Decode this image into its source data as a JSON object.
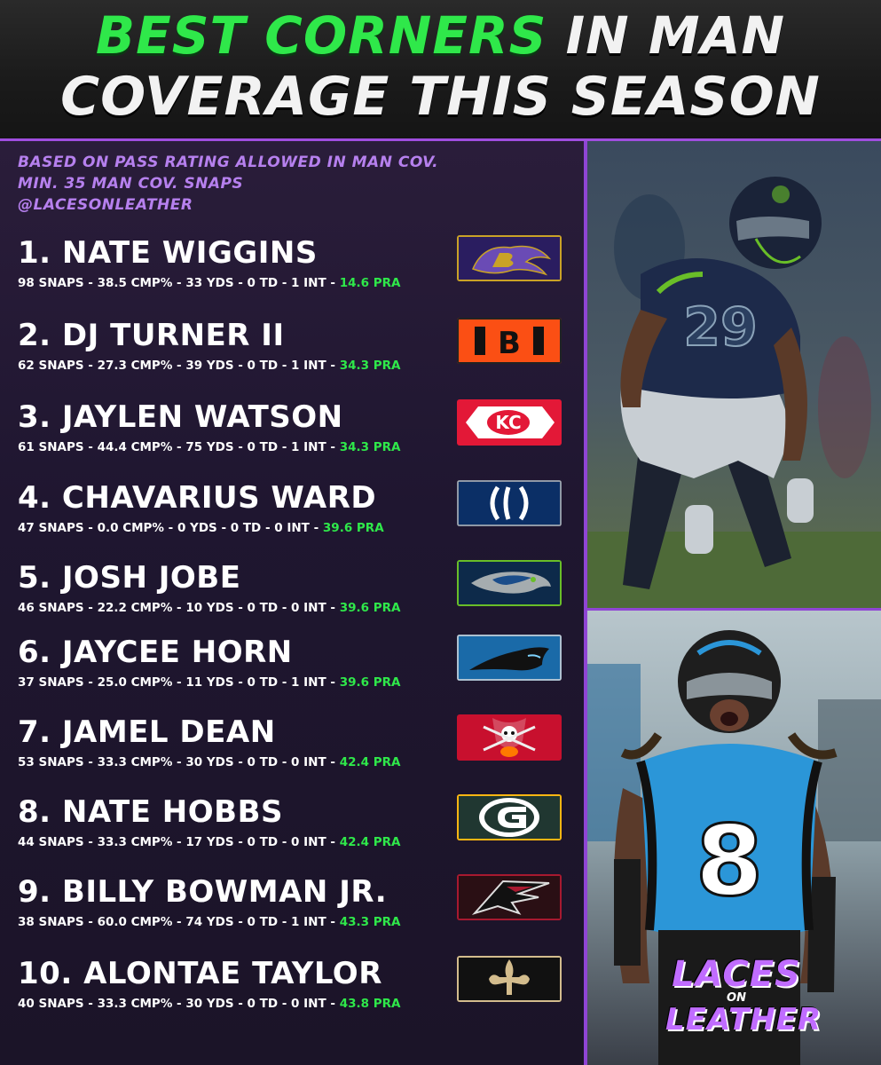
{
  "title": {
    "line1_green": "BEST CORNERS",
    "line1_white": " IN MAN",
    "line2": "COVERAGE THIS SEASON"
  },
  "subtitle": {
    "line1": "BASED ON PASS RATING ALLOWED IN MAN COV.",
    "line2": "MIN. 35 MAN COV. SNAPS",
    "handle": "@LACESONLEATHER"
  },
  "players": [
    {
      "name": "1. NATE WIGGINS",
      "stats": "98 SNAPS - 38.5 CMP% - 33 YDS - 0 TD - 1 INT - ",
      "pra": "14.6 PRA",
      "logo": "ravens-logo",
      "logo_color": "#241773"
    },
    {
      "name": "2. DJ TURNER II",
      "stats": "62 SNAPS - 27.3 CMP% - 39 YDS - 0 TD - 1 INT - ",
      "pra": "34.3 PRA",
      "logo": "bengals-logo",
      "logo_color": "#fb4f14"
    },
    {
      "name": "3. JAYLEN WATSON",
      "stats": "61 SNAPS - 44.4 CMP% - 75 YDS - 0 TD - 1 INT - ",
      "pra": "34.3 PRA",
      "logo": "chiefs-logo",
      "logo_color": "#e31837"
    },
    {
      "name": "4. CHAVARIUS WARD",
      "stats": "47 SNAPS - 0.0 CMP% - 0 YDS - 0 TD - 0 INT - ",
      "pra": "39.6 PRA",
      "logo": "colts-logo",
      "logo_color": "#002c5f"
    },
    {
      "name": "5. JOSH JOBE",
      "stats": "46 SNAPS - 22.2 CMP% - 10 YDS - 0 TD - 0 INT - ",
      "pra": "39.6 PRA",
      "logo": "seahawks-logo",
      "logo_color": "#69be28"
    },
    {
      "name": "6. JAYCEE HORN",
      "stats": "37 SNAPS - 25.0 CMP% - 11 YDS - 0 TD - 1 INT - ",
      "pra": "39.6 PRA",
      "logo": "panthers-logo",
      "logo_color": "#0085ca"
    },
    {
      "name": "7. JAMEL DEAN",
      "stats": "53 SNAPS - 33.3 CMP% - 30 YDS - 0 TD - 0 INT - ",
      "pra": "42.4 PRA",
      "logo": "buccaneers-logo",
      "logo_color": "#d50a0a"
    },
    {
      "name": "8. NATE HOBBS",
      "stats": "44 SNAPS - 33.3 CMP% - 17 YDS - 0 TD - 0 INT - ",
      "pra": "42.4 PRA",
      "logo": "packers-logo",
      "logo_color": "#203731"
    },
    {
      "name": "9. BILLY BOWMAN JR.",
      "stats": "38 SNAPS - 60.0 CMP% - 74 YDS - 0 TD - 1 INT - ",
      "pra": "43.3 PRA",
      "logo": "falcons-logo",
      "logo_color": "#a71930"
    },
    {
      "name": "10. ALONTAE TAYLOR",
      "stats": "40 SNAPS - 33.3 CMP% - 30 YDS - 0 TD - 0 INT - ",
      "pra": "43.8 PRA",
      "logo": "saints-logo",
      "logo_color": "#d3bc8d"
    }
  ],
  "brand": {
    "line1": "LACES",
    "line2": "ON",
    "line3": "LEATHER"
  },
  "photos": [
    {
      "subject": "seahawks-player-29-photo",
      "jersey_number": "29"
    },
    {
      "subject": "panthers-player-8-photo",
      "jersey_number": "8"
    }
  ],
  "colors": {
    "accent_green": "#2fe84a",
    "accent_purple": "#8f45d4",
    "subtitle_purple": "#b680ee"
  }
}
